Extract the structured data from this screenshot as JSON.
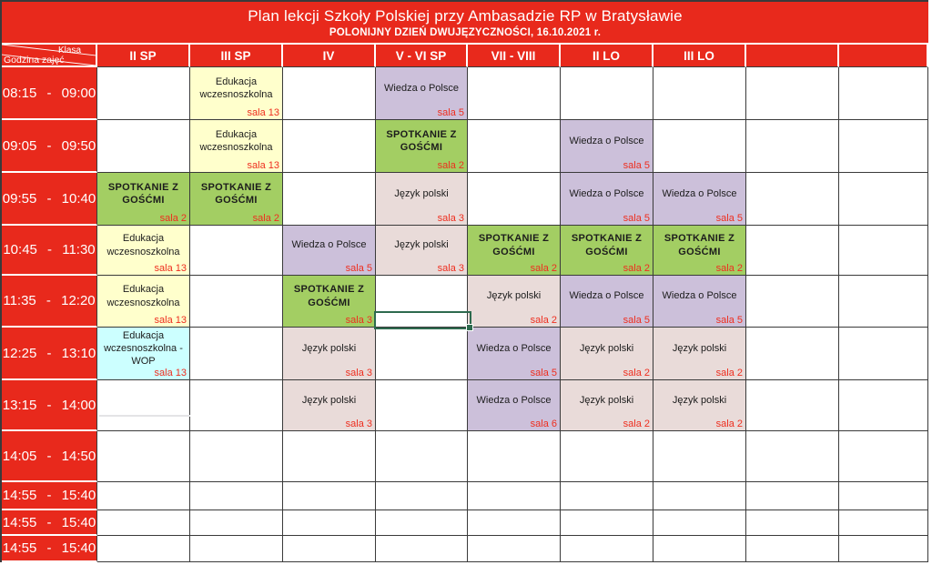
{
  "title": {
    "line1": "Plan lekcji Szkoły Polskiej przy Ambasadzie RP w Bratysławie",
    "line2": "POLONIJNY DZIEŃ DWUJĘZYCZNOŚCI, 16.10.2021 r."
  },
  "corner": {
    "top_label": "Klasa",
    "bottom_label": "Godzina zajęć"
  },
  "columns": [
    "II SP",
    "III SP",
    "IV",
    "V - VI SP",
    "VII - VIII",
    "II LO",
    "III LO",
    "",
    ""
  ],
  "colors": {
    "banner_red": "#e8291c",
    "sala_text": "#ee2e1f",
    "edukacja": "#ffffcc",
    "wiedza": "#ccc0da",
    "spotkanie": "#a3ce63",
    "jezyk": "#e9dbd9",
    "edukacja_wop": "#ccffff",
    "selection_green": "#2d6a4e",
    "grid_border": "#3a3a3a"
  },
  "rows": [
    {
      "time": "08:15 - 09:00",
      "cells": [
        null,
        {
          "subject": "Edukacja wczesnoszkolna",
          "sala": "sala 13",
          "type": "edukacja"
        },
        null,
        {
          "subject": "Wiedza o Polsce",
          "sala": "sala 5",
          "type": "wiedza"
        },
        null,
        null,
        null,
        null,
        null
      ]
    },
    {
      "time": "09:05 - 09:50",
      "cells": [
        null,
        {
          "subject": "Edukacja wczesnoszkolna",
          "sala": "sala 13",
          "type": "edukacja"
        },
        null,
        {
          "subject": "SPOTKANIE Z GOŚĆMI",
          "sala": "sala 2",
          "type": "spotkanie"
        },
        null,
        {
          "subject": "Wiedza o Polsce",
          "sala": "sala 5",
          "type": "wiedza"
        },
        null,
        null,
        null
      ]
    },
    {
      "time": "09:55 - 10:40",
      "cells": [
        {
          "subject": "SPOTKANIE Z GOŚĆMI",
          "sala": "sala 2",
          "type": "spotkanie"
        },
        {
          "subject": "SPOTKANIE Z GOŚĆMI",
          "sala": "sala 2",
          "type": "spotkanie"
        },
        null,
        {
          "subject": "Język polski",
          "sala": "sala 3",
          "type": "jezyk"
        },
        null,
        {
          "subject": "Wiedza o Polsce",
          "sala": "sala 5",
          "type": "wiedza"
        },
        {
          "subject": "Wiedza o Polsce",
          "sala": "sala 5",
          "type": "wiedza"
        },
        null,
        null
      ]
    },
    {
      "time": "10:45 - 11:30",
      "cells": [
        {
          "subject": "Edukacja wczesnoszkolna",
          "sala": "sala 13",
          "type": "edukacja"
        },
        null,
        {
          "subject": "Wiedza o Polsce",
          "sala": "sala 5",
          "type": "wiedza"
        },
        {
          "subject": "Język polski",
          "sala": "sala 3",
          "type": "jezyk"
        },
        {
          "subject": "SPOTKANIE Z GOŚĆMI",
          "sala": "sala 2",
          "type": "spotkanie"
        },
        {
          "subject": "SPOTKANIE Z GOŚĆMI",
          "sala": "sala 2",
          "type": "spotkanie"
        },
        {
          "subject": "SPOTKANIE Z GOŚĆMI",
          "sala": "sala 2",
          "type": "spotkanie"
        },
        null,
        null
      ]
    },
    {
      "time": "11:35 - 12:20",
      "cells": [
        {
          "subject": "Edukacja wczesnoszkolna",
          "sala": "sala 13",
          "type": "edukacja"
        },
        null,
        {
          "subject": "SPOTKANIE Z GOŚĆMI",
          "sala": "sala 3",
          "type": "spotkanie"
        },
        null,
        {
          "subject": "Język polski",
          "sala": "sala 2",
          "type": "jezyk"
        },
        {
          "subject": "Wiedza o Polsce",
          "sala": "sala 5",
          "type": "wiedza"
        },
        {
          "subject": "Wiedza o Polsce",
          "sala": "sala 5",
          "type": "wiedza"
        },
        null,
        null
      ]
    },
    {
      "time": "12:25 - 13:10",
      "cells": [
        {
          "subject": "Edukacja wczesnoszkolna - WOP",
          "sala": "sala 13",
          "type": "edukacja_wop"
        },
        null,
        {
          "subject": "Język polski",
          "sala": "sala 3",
          "type": "jezyk"
        },
        null,
        {
          "subject": "Wiedza o Polsce",
          "sala": "sala 5",
          "type": "wiedza"
        },
        {
          "subject": "Język polski",
          "sala": "sala 2",
          "type": "jezyk"
        },
        {
          "subject": "Język polski",
          "sala": "sala 2",
          "type": "jezyk"
        },
        null,
        null
      ]
    },
    {
      "time": "13:15 - 14:00",
      "cells": [
        null,
        null,
        {
          "subject": "Język polski",
          "sala": "sala 3",
          "type": "jezyk"
        },
        null,
        {
          "subject": "Wiedza o Polsce",
          "sala": "sala 6",
          "type": "wiedza"
        },
        {
          "subject": "Język polski",
          "sala": "sala 2",
          "type": "jezyk"
        },
        {
          "subject": "Język polski",
          "sala": "sala 2",
          "type": "jezyk"
        },
        null,
        null
      ]
    },
    {
      "time": "14:05 - 14:50",
      "cells": [
        null,
        null,
        null,
        null,
        null,
        null,
        null,
        null,
        null
      ]
    },
    {
      "time": "14:55 - 15:40",
      "cells": [
        null,
        null,
        null,
        null,
        null,
        null,
        null,
        null,
        null
      ]
    },
    {
      "time": "14:55 - 15:40",
      "cells": [
        null,
        null,
        null,
        null,
        null,
        null,
        null,
        null,
        null
      ]
    },
    {
      "time": "14:55 - 15:40",
      "cells": [
        null,
        null,
        null,
        null,
        null,
        null,
        null,
        null,
        null
      ]
    }
  ],
  "selection": {
    "description": "active spreadsheet cell outline with fill handle, bottom of 11:35 row in V - VI SP column"
  }
}
